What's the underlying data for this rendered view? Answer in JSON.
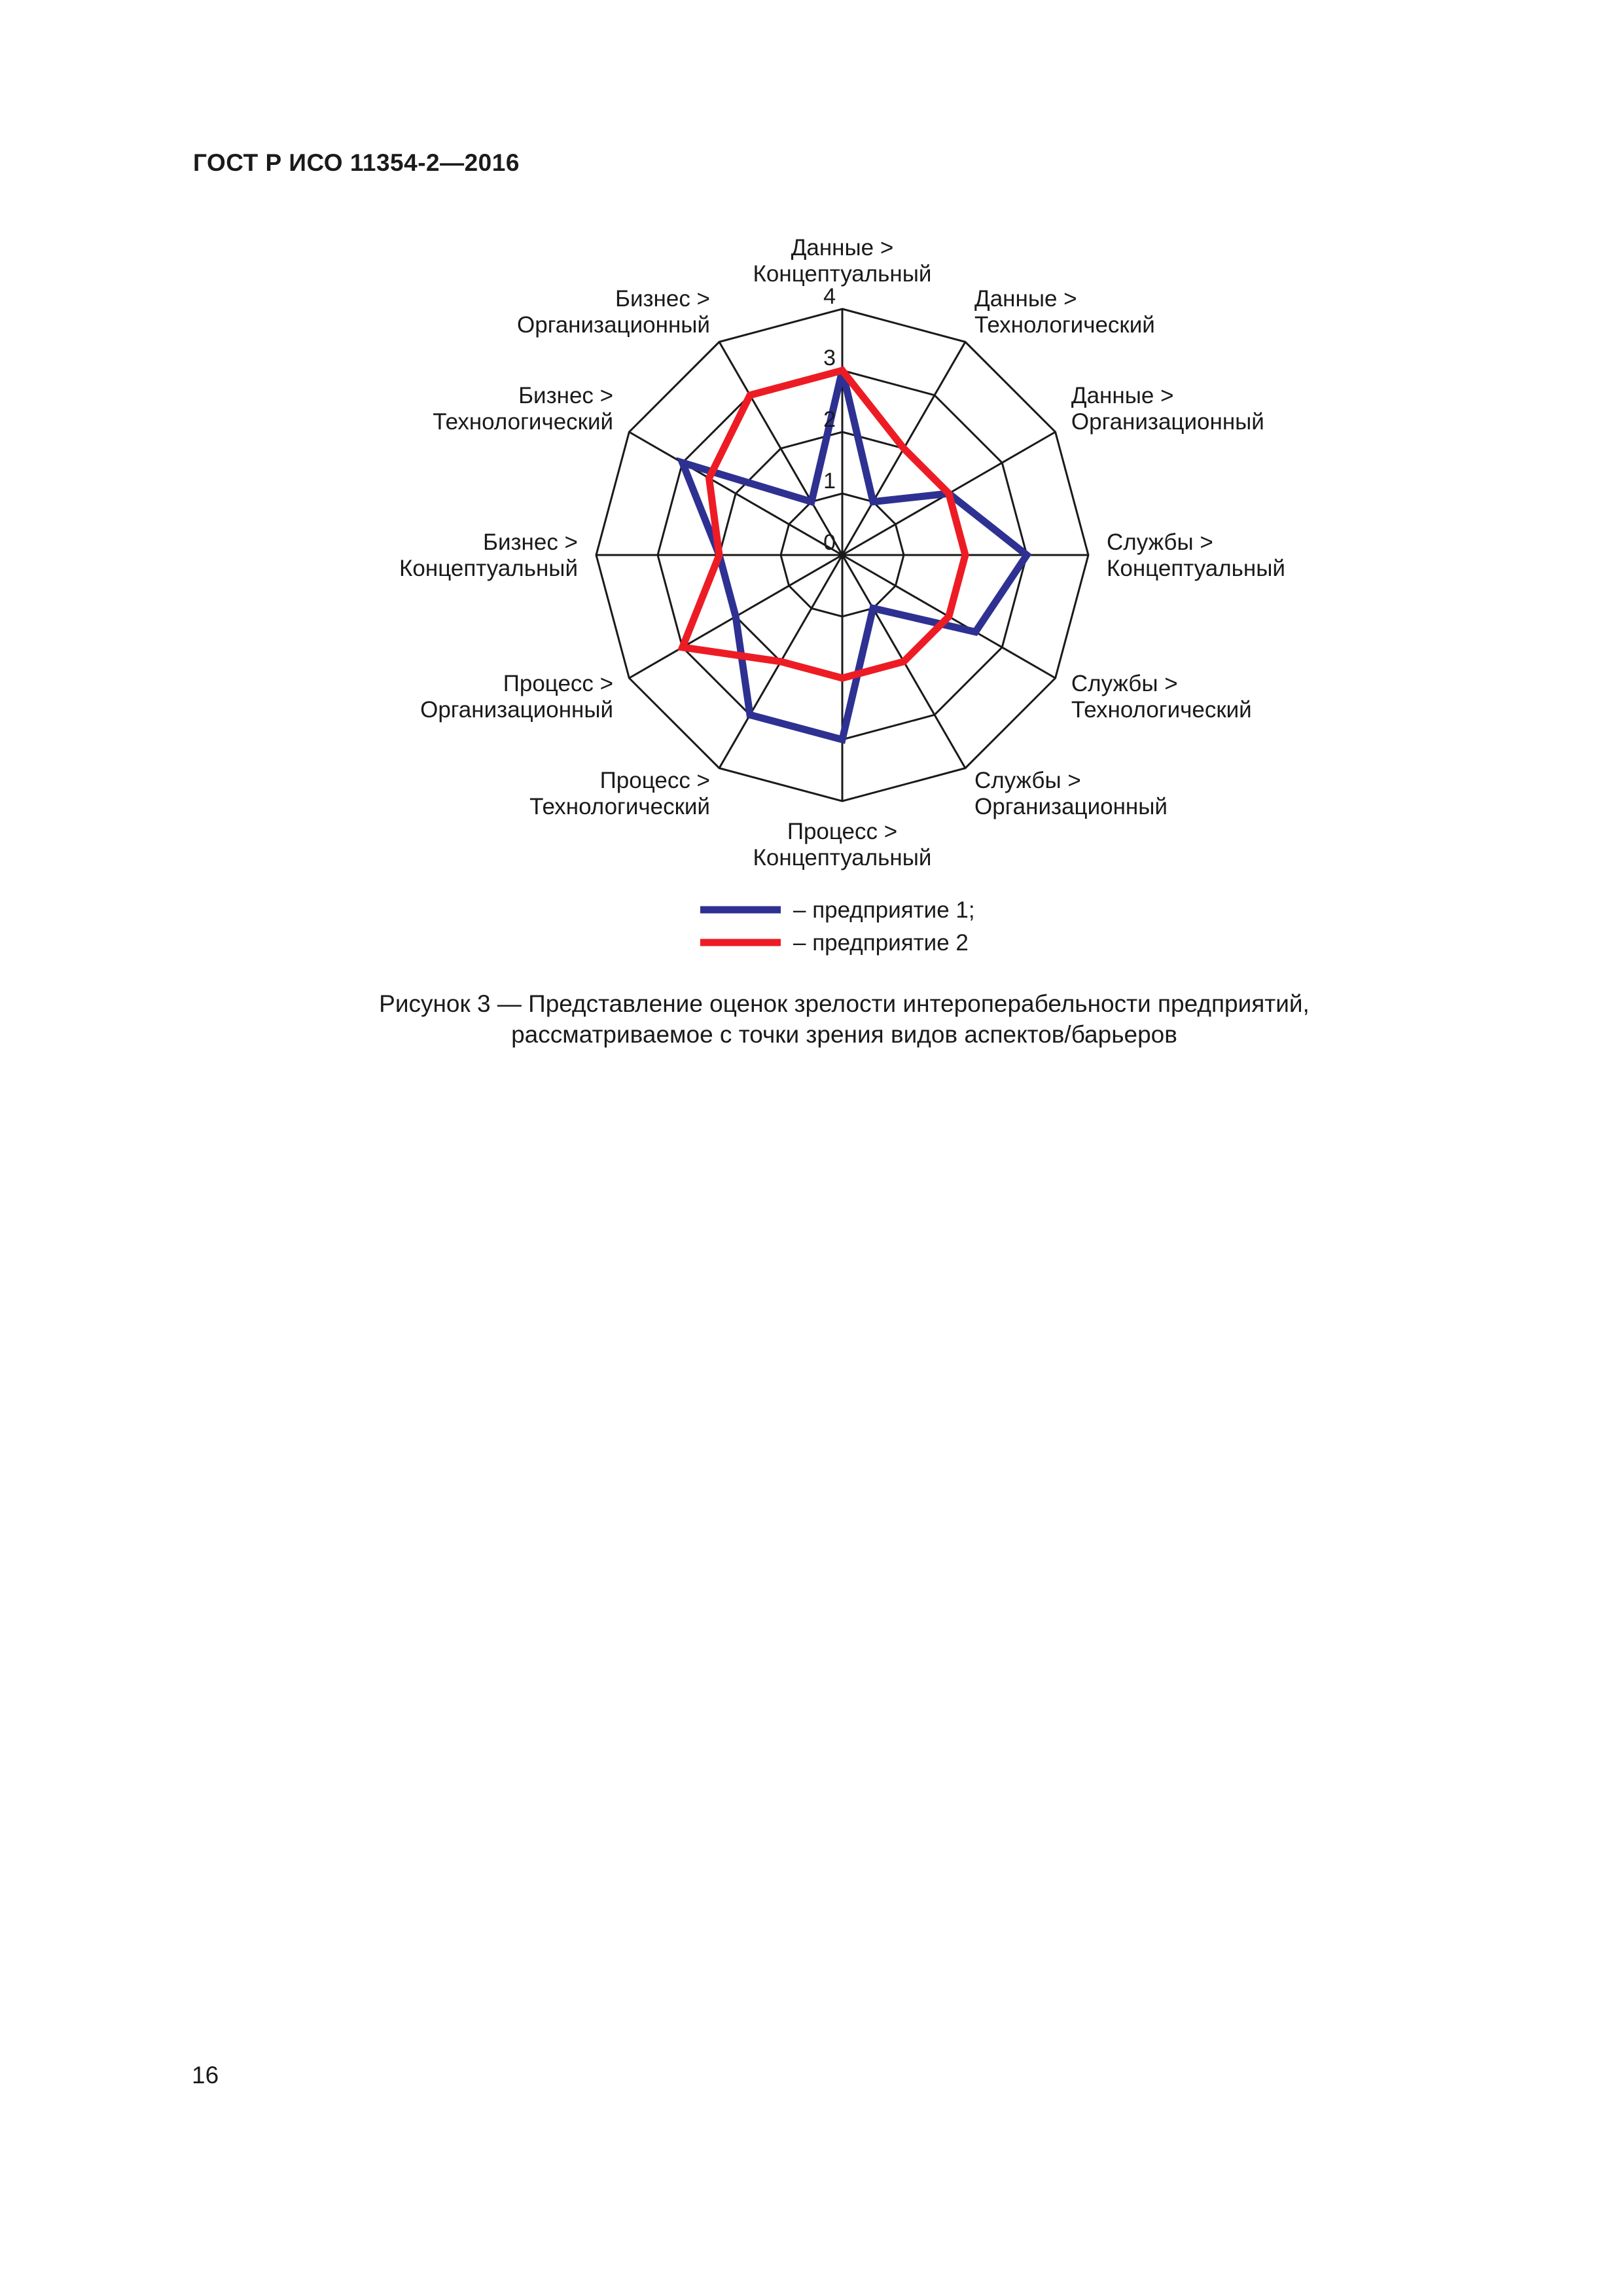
{
  "header": {
    "title": "ГОСТ Р ИСО 11354-2—2016"
  },
  "footer": {
    "page_number": "16"
  },
  "figure": {
    "caption_line1": "Рисунок 3 — Представление оценок зрелости интероперабельности предприятий,",
    "caption_line2": "рассматриваемое с точки зрения видов аспектов/барьеров"
  },
  "chart_data": {
    "type": "radar",
    "title": "",
    "categories": [
      [
        "Данные >",
        "Концептуальный"
      ],
      [
        "Данные >",
        "Технологический"
      ],
      [
        "Данные >",
        "Организационный"
      ],
      [
        "Службы >",
        "Концептуальный"
      ],
      [
        "Службы >",
        "Технологический"
      ],
      [
        "Службы >",
        "Организационный"
      ],
      [
        "Процесс >",
        "Концептуальный"
      ],
      [
        "Процесс >",
        "Технологический"
      ],
      [
        "Процесс >",
        "Организационный"
      ],
      [
        "Бизнес >",
        "Концептуальный"
      ],
      [
        "Бизнес >",
        "Технологический"
      ],
      [
        "Бизнес >",
        "Организационный"
      ]
    ],
    "range": [
      0,
      4
    ],
    "ticks": [
      "0",
      "1",
      "2",
      "3",
      "4"
    ],
    "grid": true,
    "series": [
      {
        "name": "– предприятие 1;",
        "color": "#2e3192",
        "values": [
          3,
          1,
          2,
          3,
          2.5,
          1,
          3,
          3,
          2,
          2,
          3,
          1
        ]
      },
      {
        "name": "– предприятие 2",
        "color": "#ed1c24",
        "values": [
          3,
          2,
          2,
          2,
          2,
          2,
          2,
          2,
          3,
          2,
          2.5,
          3
        ]
      }
    ],
    "legend_position": "bottom"
  }
}
